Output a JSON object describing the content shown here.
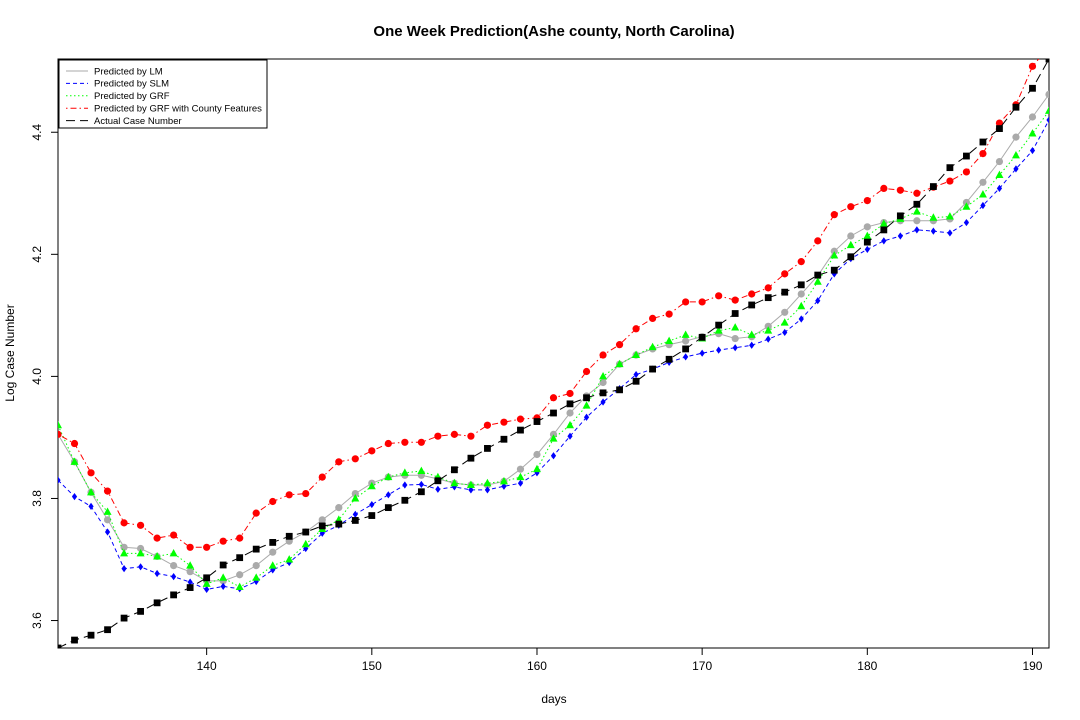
{
  "chart_data": {
    "type": "line",
    "title": "One Week Prediction(Ashe county, North Carolina)",
    "xlabel": "days",
    "ylabel": "Log Case Number",
    "xlim": [
      131,
      191
    ],
    "ylim": [
      3.555,
      4.52
    ],
    "x_ticks": [
      140,
      150,
      160,
      170,
      180,
      190
    ],
    "y_ticks": [
      3.6,
      3.8,
      4.0,
      4.2,
      4.4
    ],
    "legend_position": "top-left",
    "grid": false,
    "x": [
      131,
      132,
      133,
      134,
      135,
      136,
      137,
      138,
      139,
      140,
      141,
      142,
      143,
      144,
      145,
      146,
      147,
      148,
      149,
      150,
      151,
      152,
      153,
      154,
      155,
      156,
      157,
      158,
      159,
      160,
      161,
      162,
      163,
      164,
      165,
      166,
      167,
      168,
      169,
      170,
      171,
      172,
      173,
      174,
      175,
      176,
      177,
      178,
      179,
      180,
      181,
      182,
      183,
      184,
      185,
      186,
      187,
      188,
      189,
      190,
      191
    ],
    "series": [
      {
        "name": "Predicted by LM",
        "color": "#aaaaaa",
        "line_style": "solid",
        "marker": "circle",
        "values": [
          3.905,
          3.86,
          3.81,
          3.765,
          3.72,
          3.718,
          3.705,
          3.69,
          3.68,
          3.665,
          3.665,
          3.675,
          3.69,
          3.712,
          3.73,
          3.745,
          3.765,
          3.785,
          3.808,
          3.825,
          3.835,
          3.838,
          3.838,
          3.832,
          3.825,
          3.822,
          3.822,
          3.828,
          3.848,
          3.872,
          3.905,
          3.94,
          3.968,
          3.99,
          4.02,
          4.035,
          4.045,
          4.052,
          4.058,
          4.065,
          4.07,
          4.062,
          4.065,
          4.082,
          4.105,
          4.135,
          4.165,
          4.205,
          4.23,
          4.245,
          4.252,
          4.255,
          4.255,
          4.255,
          4.258,
          4.285,
          4.318,
          4.352,
          4.392,
          4.425,
          4.462
        ]
      },
      {
        "name": "Predicted by SLM",
        "color": "#0000ff",
        "line_style": "dashed",
        "marker": "diamond",
        "values": [
          3.83,
          3.803,
          3.787,
          3.745,
          3.685,
          3.688,
          3.677,
          3.672,
          3.663,
          3.651,
          3.656,
          3.652,
          3.664,
          3.683,
          3.695,
          3.718,
          3.743,
          3.756,
          3.774,
          3.79,
          3.806,
          3.822,
          3.823,
          3.815,
          3.819,
          3.814,
          3.814,
          3.82,
          3.825,
          3.842,
          3.87,
          3.902,
          3.933,
          3.958,
          3.98,
          4.003,
          4.012,
          4.023,
          4.032,
          4.038,
          4.043,
          4.047,
          4.051,
          4.061,
          4.072,
          4.094,
          4.124,
          4.168,
          4.193,
          4.208,
          4.222,
          4.23,
          4.24,
          4.238,
          4.235,
          4.252,
          4.28,
          4.308,
          4.34,
          4.37,
          4.42
        ]
      },
      {
        "name": "Predicted by GRF",
        "color": "#00ff00",
        "line_style": "dotted",
        "marker": "triangle",
        "values": [
          3.92,
          3.86,
          3.81,
          3.778,
          3.71,
          3.71,
          3.705,
          3.71,
          3.69,
          3.66,
          3.67,
          3.655,
          3.67,
          3.69,
          3.7,
          3.725,
          3.75,
          3.765,
          3.8,
          3.82,
          3.835,
          3.842,
          3.845,
          3.835,
          3.825,
          3.822,
          3.825,
          3.828,
          3.835,
          3.848,
          3.898,
          3.92,
          3.952,
          4.0,
          4.02,
          4.035,
          4.048,
          4.058,
          4.068,
          4.062,
          4.075,
          4.08,
          4.068,
          4.075,
          4.088,
          4.115,
          4.155,
          4.198,
          4.215,
          4.23,
          4.25,
          4.258,
          4.27,
          4.26,
          4.262,
          4.278,
          4.298,
          4.33,
          4.362,
          4.398,
          4.435
        ]
      },
      {
        "name": "Predicted by GRF with County Features",
        "color": "#ff0000",
        "line_style": "dotdash",
        "marker": "circle",
        "values": [
          3.905,
          3.89,
          3.842,
          3.812,
          3.76,
          3.756,
          3.735,
          3.74,
          3.72,
          3.72,
          3.73,
          3.735,
          3.776,
          3.795,
          3.806,
          3.808,
          3.835,
          3.86,
          3.865,
          3.878,
          3.89,
          3.892,
          3.892,
          3.902,
          3.905,
          3.902,
          3.92,
          3.925,
          3.93,
          3.932,
          3.965,
          3.972,
          4.008,
          4.035,
          4.052,
          4.078,
          4.095,
          4.102,
          4.122,
          4.122,
          4.132,
          4.125,
          4.135,
          4.145,
          4.168,
          4.188,
          4.222,
          4.265,
          4.278,
          4.288,
          4.308,
          4.305,
          4.3,
          4.31,
          4.32,
          4.335,
          4.365,
          4.415,
          4.445,
          4.508,
          4.54
        ]
      },
      {
        "name": "Actual Case Number",
        "color": "#000000",
        "line_style": "longdash",
        "marker": "square",
        "values": [
          3.555,
          3.568,
          3.576,
          3.585,
          3.604,
          3.615,
          3.629,
          3.642,
          3.654,
          3.67,
          3.691,
          3.703,
          3.717,
          3.728,
          3.738,
          3.745,
          3.755,
          3.758,
          3.764,
          3.772,
          3.785,
          3.797,
          3.811,
          3.829,
          3.847,
          3.866,
          3.882,
          3.897,
          3.912,
          3.926,
          3.94,
          3.955,
          3.965,
          3.973,
          3.978,
          3.992,
          4.012,
          4.028,
          4.045,
          4.064,
          4.084,
          4.103,
          4.117,
          4.129,
          4.138,
          4.15,
          4.166,
          4.174,
          4.196,
          4.22,
          4.24,
          4.263,
          4.282,
          4.311,
          4.342,
          4.361,
          4.384,
          4.406,
          4.441,
          4.472,
          4.52
        ]
      }
    ]
  }
}
